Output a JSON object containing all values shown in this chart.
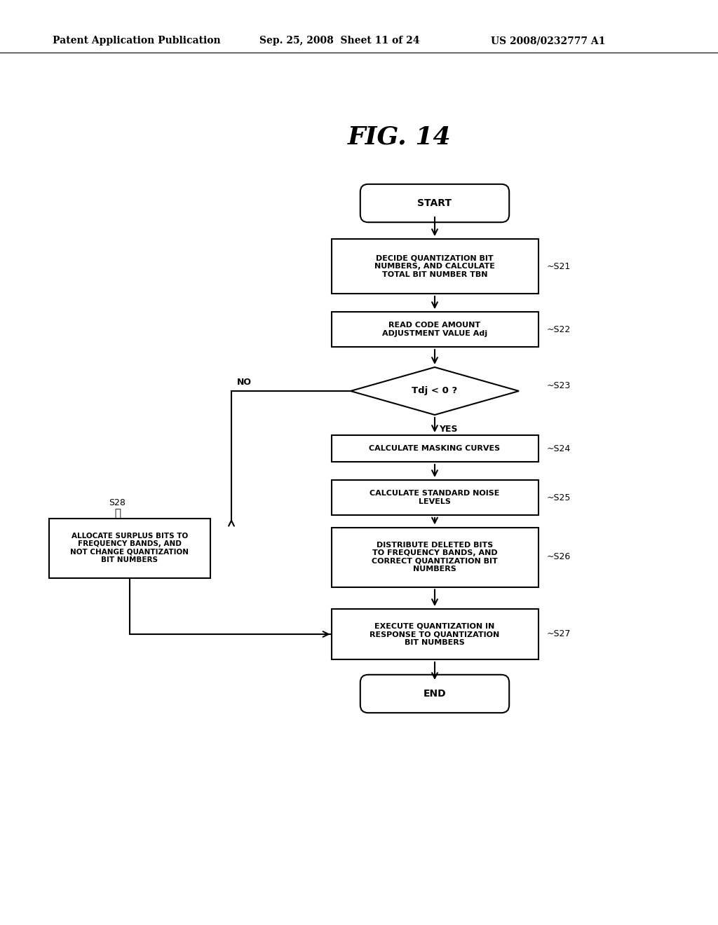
{
  "bg_color": "#ffffff",
  "header_left": "Patent Application Publication",
  "header_mid": "Sep. 25, 2008  Sheet 11 of 24",
  "header_right": "US 2008/0232777 A1",
  "fig_title": "FIG. 14",
  "start_label": "START",
  "end_label": "END",
  "s21_label": "DECIDE QUANTIZATION BIT\nNUMBERS, AND CALCULATE\nTOTAL BIT NUMBER TBN",
  "s22_label": "READ CODE AMOUNT\nADJUSTMENT VALUE Adj",
  "s23_label": "Tdj < 0 ?",
  "s24_label": "CALCULATE MASKING CURVES",
  "s25_label": "CALCULATE STANDARD NOISE\nLEVELS",
  "s26_label": "DISTRIBUTE DELETED BITS\nTO FREQUENCY BANDS, AND\nCORRECT QUANTIZATION BIT\nNUMBERS",
  "s28_label": "ALLOCATE SURPLUS BITS TO\nFREQUENCY BANDS, AND\nNOT CHANGE QUANTIZATION\nBIT NUMBERS",
  "s27_label": "EXECUTE QUANTIZATION IN\nRESPONSE TO QUANTIZATION\nBIT NUMBERS",
  "yes_label": "YES",
  "no_label": "NO",
  "tag_s21": "~S21",
  "tag_s22": "~S22",
  "tag_s23": "~S23",
  "tag_s24": "~S24",
  "tag_s25": "~S25",
  "tag_s26": "~S26",
  "tag_s27": "~S27",
  "tag_s28": "S28"
}
